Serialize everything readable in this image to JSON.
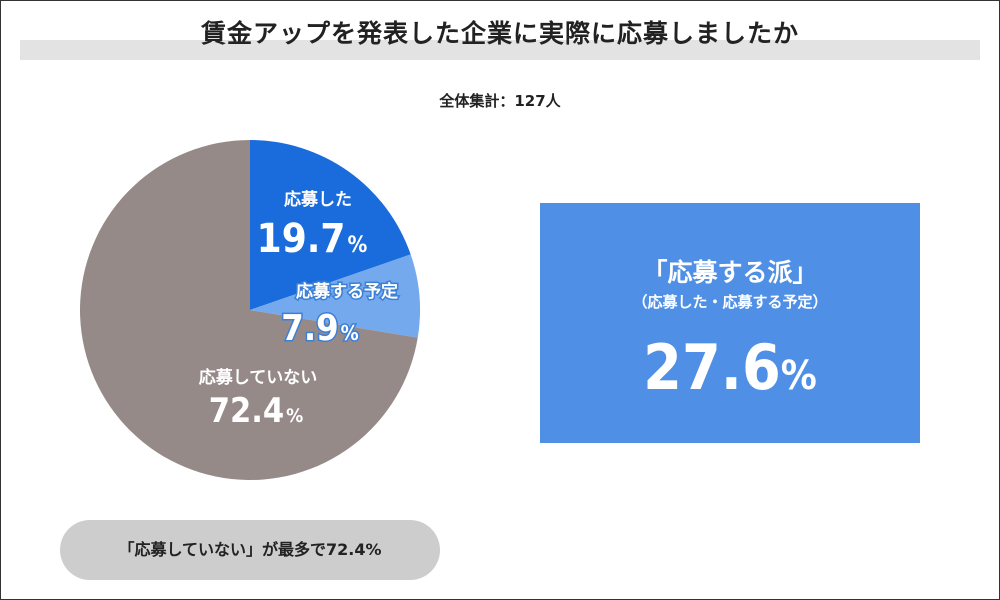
{
  "title": "賃金アップを発表した企業に実際に応募しましたか",
  "total_label": "全体集計：127人",
  "chart_data": {
    "type": "pie",
    "title": "賃金アップを発表した企業に実際に応募しましたか",
    "subtitle": "全体集計：127人",
    "unit": "%",
    "slices": [
      {
        "name": "応募した",
        "value": 19.7,
        "pct_label": "19.7",
        "color": "#1a6bdb"
      },
      {
        "name": "応募する予定",
        "value": 7.9,
        "pct_label": "7.9",
        "color": "#74a9ee"
      },
      {
        "name": "応募していない",
        "value": 72.4,
        "pct_label": "72.4",
        "color": "#968a89"
      }
    ]
  },
  "summary": {
    "label": "「応募する派」",
    "sublabel": "（応募した・応募する予定）",
    "value": "27.6",
    "unit": "%",
    "color": "#4f90e6"
  },
  "note": "「応募していない」が最多で72.4%"
}
